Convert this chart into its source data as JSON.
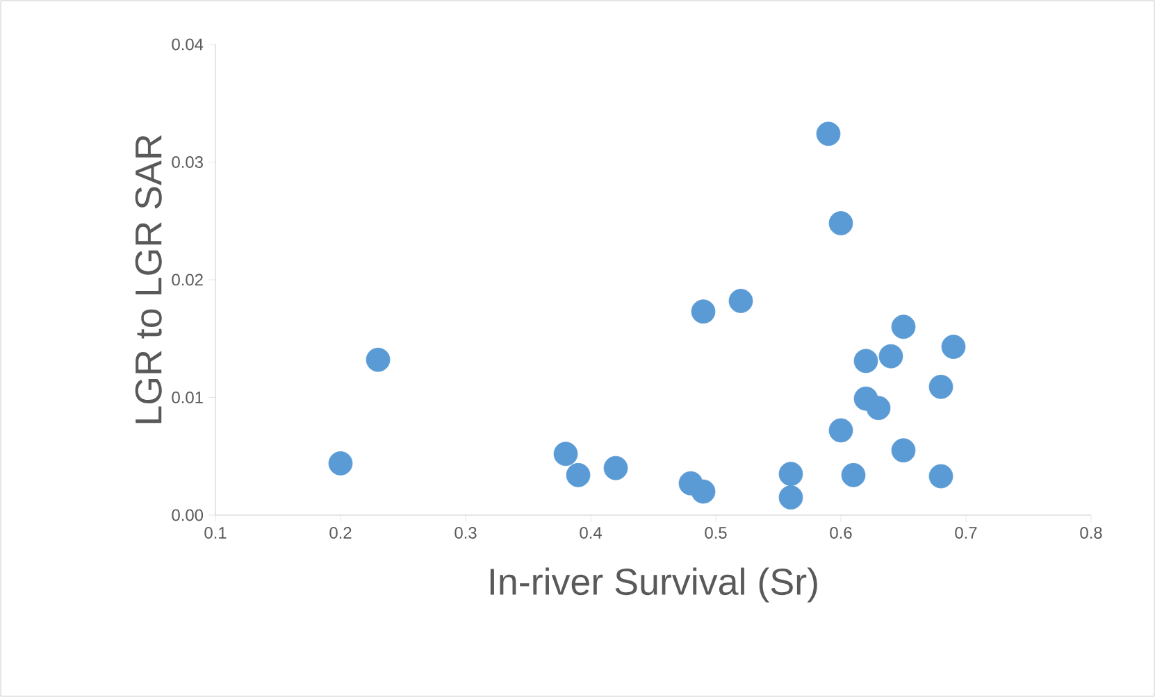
{
  "chart_data": {
    "type": "scatter",
    "xlabel": "In-river Survival (Sr)",
    "ylabel": "LGR to LGR SAR",
    "color": "#5b9bd5",
    "marker": "circle",
    "grid": false,
    "legend": false,
    "x": [
      0.2,
      0.23,
      0.38,
      0.39,
      0.42,
      0.48,
      0.49,
      0.49,
      0.52,
      0.56,
      0.56,
      0.59,
      0.6,
      0.6,
      0.61,
      0.62,
      0.62,
      0.63,
      0.64,
      0.65,
      0.65,
      0.68,
      0.68,
      0.69
    ],
    "values": [
      0.0044,
      0.0132,
      0.0052,
      0.0034,
      0.004,
      0.0027,
      0.002,
      0.0173,
      0.0182,
      0.0015,
      0.0035,
      0.0324,
      0.0248,
      0.0072,
      0.0034,
      0.0131,
      0.0099,
      0.0091,
      0.0135,
      0.016,
      0.0055,
      0.0109,
      0.0033,
      0.0143
    ],
    "xlim": [
      0.1,
      0.8
    ],
    "xticks": [
      0.1,
      0.2,
      0.3,
      0.4,
      0.5,
      0.6,
      0.7,
      0.8
    ],
    "ylim": [
      0,
      0.04
    ],
    "yticks": [
      {
        "value": 0,
        "label": "0.00"
      },
      {
        "value": 0.01,
        "label": "0.01"
      },
      {
        "value": 0.02,
        "label": "0.02"
      },
      {
        "value": 0.03,
        "label": "0.03"
      },
      {
        "value": 0.04,
        "label": "0.04"
      }
    ]
  }
}
